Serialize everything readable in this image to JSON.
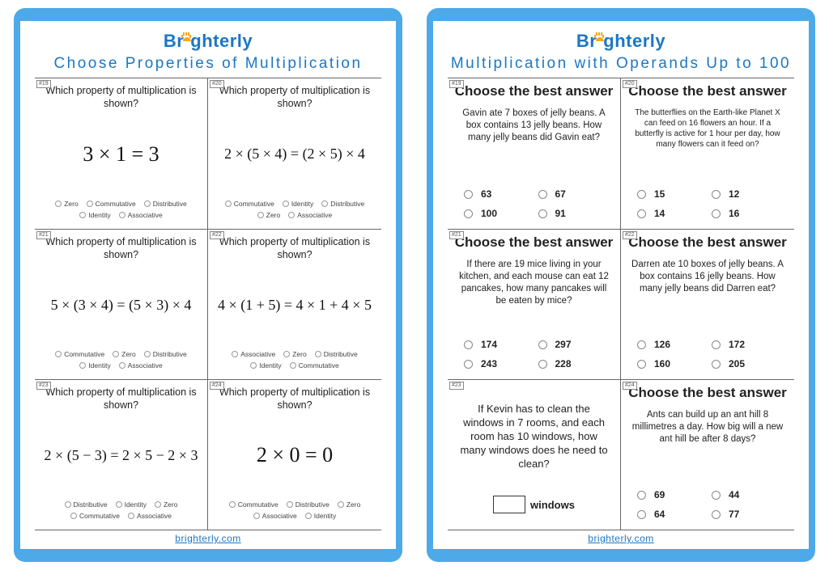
{
  "brand": "Brighterly",
  "footer_link": "brighterly.com",
  "colors": {
    "frame": "#4da9e8",
    "brand_text": "#1c77c3",
    "sun": "#f6a91b",
    "rule": "#666666",
    "text": "#222222",
    "radio_border": "#999999",
    "background": "#ffffff"
  },
  "sheetA": {
    "title": "Choose Properties of Multiplication",
    "cells": [
      {
        "num": "#19",
        "q": "Which property of multiplication is shown?",
        "expr": "3 × 1 = 3",
        "large": true,
        "opts": [
          "Zero",
          "Commutative",
          "Distributive",
          "Identity",
          "Associative"
        ]
      },
      {
        "num": "#20",
        "q": "Which property of multiplication is shown?",
        "expr": "2 × (5 × 4) = (2 × 5) × 4",
        "large": false,
        "opts": [
          "Commutative",
          "Identity",
          "Distributive",
          "Zero",
          "Associative"
        ]
      },
      {
        "num": "#21",
        "q": "Which property of multiplication is shown?",
        "expr": "5 × (3 × 4) = (5 × 3) × 4",
        "large": false,
        "opts": [
          "Commutative",
          "Zero",
          "Distributive",
          "Identity",
          "Associative"
        ]
      },
      {
        "num": "#22",
        "q": "Which property of multiplication is shown?",
        "expr": "4 × (1 + 5) = 4 × 1 + 4 × 5",
        "large": false,
        "opts": [
          "Associative",
          "Zero",
          "Distributive",
          "Identity",
          "Commutative"
        ]
      },
      {
        "num": "#23",
        "q": "Which property of multiplication is shown?",
        "expr": "2 × (5 − 3) = 2 × 5 − 2 × 3",
        "large": false,
        "opts": [
          "Distributive",
          "Identity",
          "Zero",
          "Commutative",
          "Associative"
        ]
      },
      {
        "num": "#24",
        "q": "Which property of multiplication is shown?",
        "expr": "2 × 0 = 0",
        "large": true,
        "opts": [
          "Commutative",
          "Distributive",
          "Zero",
          "Associative",
          "Identity"
        ]
      }
    ]
  },
  "sheetB": {
    "title": "Multiplication with Operands Up to 100",
    "cells": [
      {
        "num": "#19",
        "head": "Choose the best answer",
        "body": "Gavin ate 7 boxes of jelly beans. A box contains 13 jelly beans. How many jelly beans did Gavin eat?",
        "small": false,
        "opts": [
          "63",
          "67",
          "100",
          "91"
        ]
      },
      {
        "num": "#20",
        "head": "Choose the best answer",
        "body": "The butterflies on the Earth-like Planet X can feed on 16 flowers an hour. If a butterfly is active for 1 hour per day, how many flowers can it feed on?",
        "small": true,
        "opts": [
          "15",
          "12",
          "14",
          "16"
        ]
      },
      {
        "num": "#21",
        "head": "Choose the best answer",
        "body": "If there are 19 mice living in your kitchen, and each mouse can eat 12 pancakes, how many pancakes will be eaten by mice?",
        "small": false,
        "opts": [
          "174",
          "297",
          "243",
          "228"
        ]
      },
      {
        "num": "#22",
        "head": "Choose the best answer",
        "body": "Darren ate 10 boxes of jelly beans. A box contains 16 jelly beans. How many jelly beans did Darren eat?",
        "small": false,
        "opts": [
          "126",
          "172",
          "160",
          "205"
        ]
      },
      {
        "num": "#23",
        "head": "",
        "body": "If Kevin has to clean the windows in 7 rooms, and each room has 10 windows, how many windows does he need to clean?",
        "fill_unit": "windows"
      },
      {
        "num": "#24",
        "head": "Choose the best answer",
        "body": "Ants can build up an ant hill 8 millimetres a day. How big will a new ant hill be after 8 days?",
        "small": false,
        "opts": [
          "69",
          "44",
          "64",
          "77"
        ]
      }
    ]
  }
}
